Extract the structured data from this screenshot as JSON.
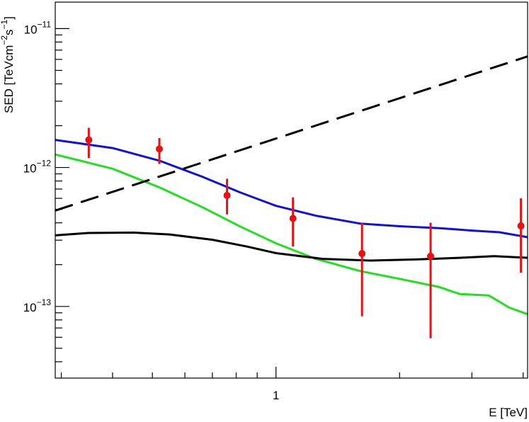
{
  "chart_data": {
    "type": "scatter",
    "xlabel": "E [TeV]",
    "ylabel_parts": [
      "SED [TeVcm",
      "-2",
      "s",
      "-1",
      "]"
    ],
    "xscale": "log",
    "yscale": "log",
    "xlim": [
      0.29,
      4.1
    ],
    "ylim": [
      3.05e-14,
      1.55e-11
    ],
    "x_tick_labels": [
      {
        "value": 1,
        "label": "1"
      }
    ],
    "y_tick_labels": [
      {
        "value": 1e-13,
        "base": "10",
        "exp": "-13"
      },
      {
        "value": 1e-12,
        "base": "10",
        "exp": "-12"
      },
      {
        "value": 1e-11,
        "base": "10",
        "exp": "-11"
      }
    ],
    "grid": false,
    "points": {
      "color": "#e81010",
      "x": [
        0.35,
        0.52,
        0.76,
        1.1,
        1.62,
        2.38,
        3.95
      ],
      "y": [
        1.58e-12,
        1.36e-12,
        6.3e-13,
        4.3e-13,
        2.4e-13,
        2.3e-13,
        3.8e-13
      ],
      "err_low": [
        1.17e-12,
        1.06e-12,
        4.6e-13,
        2.7e-13,
        8.5e-14,
        5.9e-14,
        1.75e-13
      ],
      "err_high": [
        1.93e-12,
        1.63e-12,
        8.3e-13,
        6.1e-13,
        4e-13,
        4e-13,
        6e-13
      ]
    },
    "curves": [
      {
        "color": "#1010e0",
        "dash": "solid",
        "x": [
          0.29,
          0.4,
          0.52,
          0.66,
          0.82,
          1.0,
          1.25,
          1.6,
          2.0,
          2.5,
          3.0,
          3.5,
          4.1
        ],
        "y": [
          1.58e-12,
          1.38e-12,
          1.12e-12,
          8.6e-13,
          6.6e-13,
          5.3e-13,
          4.5e-13,
          3.95e-13,
          3.78e-13,
          3.66e-13,
          3.52e-13,
          3.42e-13,
          3.15e-13
        ]
      },
      {
        "color": "#20e020",
        "dash": "solid",
        "x": [
          0.29,
          0.4,
          0.52,
          0.66,
          0.82,
          1.0,
          1.25,
          1.6,
          2.0,
          2.5,
          2.8,
          3.3,
          3.7,
          4.1
        ],
        "y": [
          1.24e-12,
          9.8e-13,
          7.2e-13,
          5.2e-13,
          3.75e-13,
          2.85e-13,
          2.2e-13,
          1.8e-13,
          1.58e-13,
          1.38e-13,
          1.23e-13,
          1.2e-13,
          9.8e-14,
          8.8e-14
        ]
      },
      {
        "color": "#000000",
        "dash": "solid",
        "x": [
          0.29,
          0.35,
          0.45,
          0.55,
          0.7,
          0.85,
          1.0,
          1.3,
          1.7,
          2.2,
          2.8,
          3.4,
          4.1
        ],
        "y": [
          3.25e-13,
          3.38e-13,
          3.4e-13,
          3.3e-13,
          3.02e-13,
          2.7e-13,
          2.42e-13,
          2.2e-13,
          2.14e-13,
          2.18e-13,
          2.24e-13,
          2.3e-13,
          2.24e-13
        ]
      },
      {
        "color": "#000000",
        "dash": "dashed",
        "x": [
          0.29,
          4.1
        ],
        "y": [
          4.9e-13,
          6.3e-12
        ]
      }
    ]
  }
}
